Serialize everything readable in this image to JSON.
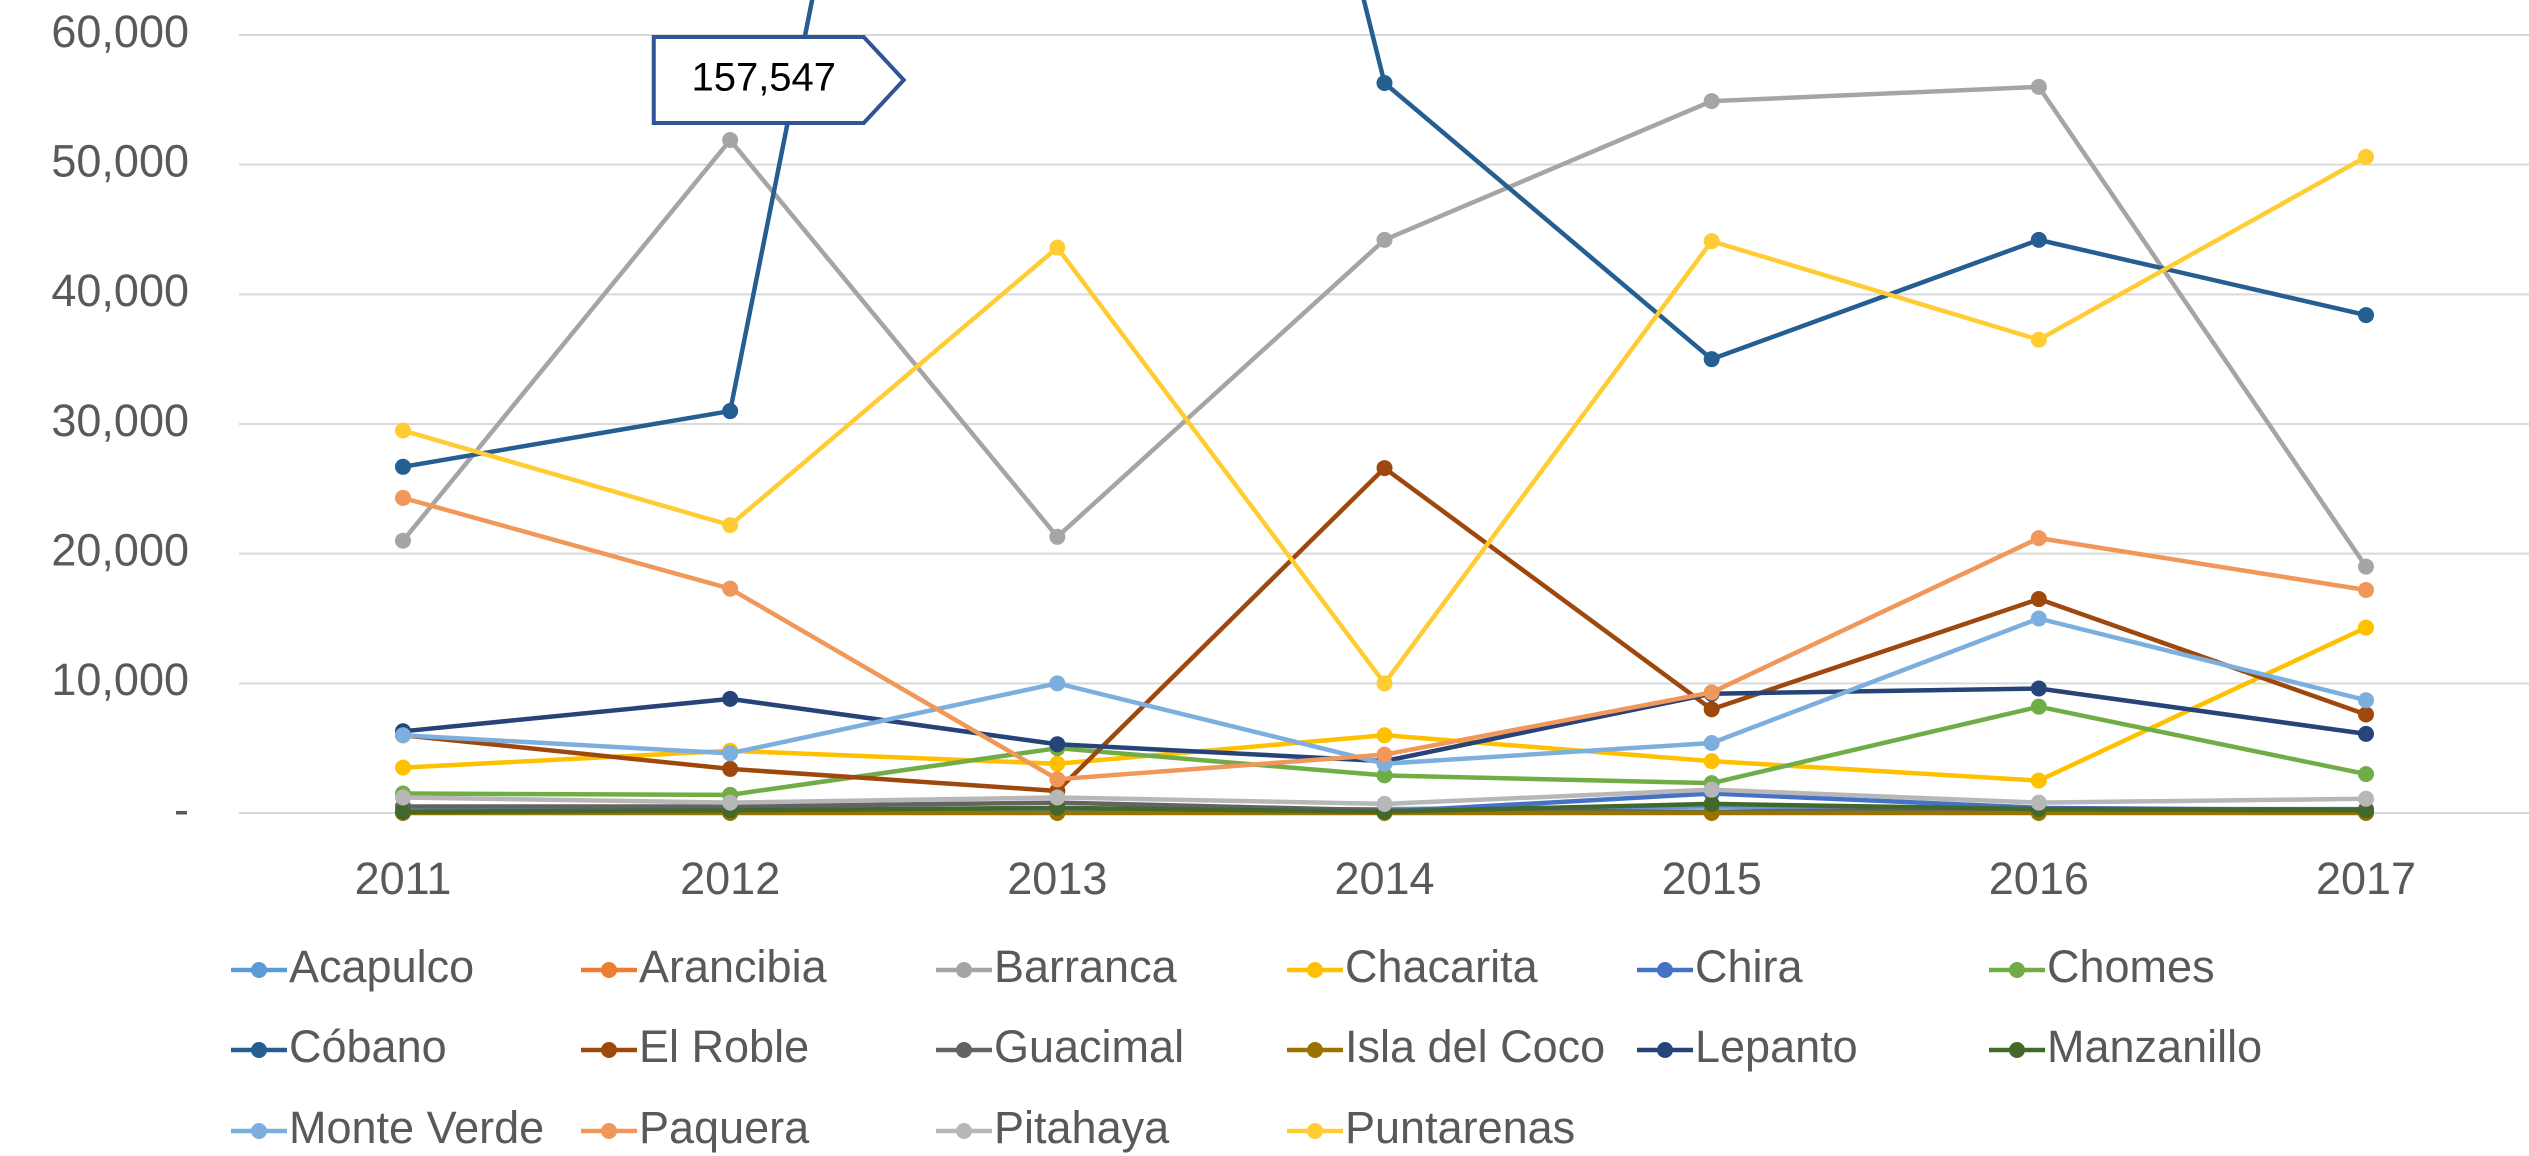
{
  "chart_data": {
    "type": "line",
    "x": [
      "2011",
      "2012",
      "2013",
      "2014",
      "2015",
      "2016",
      "2017"
    ],
    "ylim": [
      0,
      60000
    ],
    "yticks": [
      {
        "value": 0,
        "label": "-"
      },
      {
        "value": 10000,
        "label": "10,000"
      },
      {
        "value": 20000,
        "label": "20,000"
      },
      {
        "value": 30000,
        "label": "30,000"
      },
      {
        "value": 40000,
        "label": "40,000"
      },
      {
        "value": 50000,
        "label": "50,000"
      },
      {
        "value": 60000,
        "label": "60,000"
      }
    ],
    "grid": true,
    "legend": "bottom",
    "series": [
      {
        "name": "Acapulco",
        "color": "#5b9bd5",
        "values": [
          200,
          200,
          200,
          300,
          500,
          300,
          200
        ]
      },
      {
        "name": "Arancibia",
        "color": "#ed7d31",
        "values": [
          50,
          50,
          50,
          50,
          50,
          50,
          50
        ]
      },
      {
        "name": "Barranca",
        "color": "#a5a5a5",
        "values": [
          21000,
          51900,
          21300,
          44200,
          54900,
          56000,
          19000
        ]
      },
      {
        "name": "Chacarita",
        "color": "#ffc000",
        "values": [
          3500,
          4800,
          3800,
          6000,
          4000,
          2500,
          14300
        ]
      },
      {
        "name": "Chira",
        "color": "#4472c4",
        "values": [
          100,
          100,
          100,
          100,
          1500,
          400,
          200
        ]
      },
      {
        "name": "Chomes",
        "color": "#70ad47",
        "values": [
          1500,
          1400,
          5000,
          2900,
          2300,
          8200,
          3000
        ]
      },
      {
        "name": "Cóbano",
        "color": "#255e91",
        "values": [
          26700,
          31000,
          157547,
          56300,
          35000,
          44200,
          38400
        ],
        "value_labels": [
          null,
          null,
          "157,547",
          null,
          null,
          null,
          null
        ]
      },
      {
        "name": "El Roble",
        "color": "#9e480e",
        "values": [
          6000,
          3400,
          1700,
          26600,
          8000,
          16500,
          7600
        ]
      },
      {
        "name": "Guacimal",
        "color": "#636363",
        "values": [
          500,
          500,
          800,
          200,
          100,
          300,
          300
        ]
      },
      {
        "name": "Isla del Coco",
        "color": "#997300",
        "values": [
          0,
          0,
          0,
          0,
          0,
          0,
          0
        ]
      },
      {
        "name": "Lepanto",
        "color": "#264478",
        "values": [
          6300,
          8800,
          5300,
          4000,
          9200,
          9600,
          6100
        ]
      },
      {
        "name": "Manzanillo",
        "color": "#43682b",
        "values": [
          100,
          200,
          400,
          100,
          700,
          300,
          200
        ]
      },
      {
        "name": "Monte Verde",
        "color": "#7cafdd",
        "values": [
          6000,
          4600,
          10000,
          3800,
          5400,
          15000,
          8700
        ]
      },
      {
        "name": "Paquera",
        "color": "#f1975a",
        "values": [
          24300,
          17300,
          2600,
          4500,
          9300,
          21200,
          17200
        ]
      },
      {
        "name": "Pitahaya",
        "color": "#b7b7b7",
        "values": [
          1200,
          800,
          1200,
          700,
          1800,
          800,
          1100
        ]
      },
      {
        "name": "Puntarenas",
        "color": "#ffcd33",
        "values": [
          29500,
          22200,
          43600,
          10000,
          44100,
          36500,
          50600
        ]
      }
    ]
  }
}
